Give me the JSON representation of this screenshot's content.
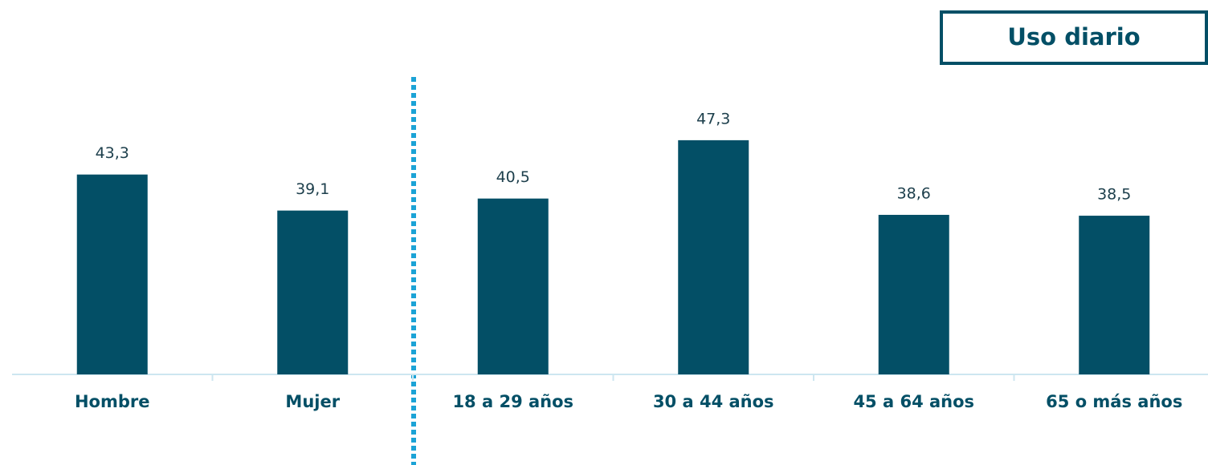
{
  "chart_data": {
    "type": "bar",
    "categories": [
      "Hombre",
      "Mujer",
      "18 a 29 años",
      "30 a 44 años",
      "45 a 64 años",
      "65 o más años"
    ],
    "series": [
      {
        "name": "Uso diario",
        "color": "#034f66",
        "values": [
          43.3,
          39.1,
          40.5,
          47.3,
          38.6,
          38.5
        ],
        "value_labels": [
          "43,3",
          "39,1",
          "40,5",
          "47,3",
          "38,6",
          "38,5"
        ]
      }
    ],
    "ylim": [
      20,
      55
    ]
  }
}
